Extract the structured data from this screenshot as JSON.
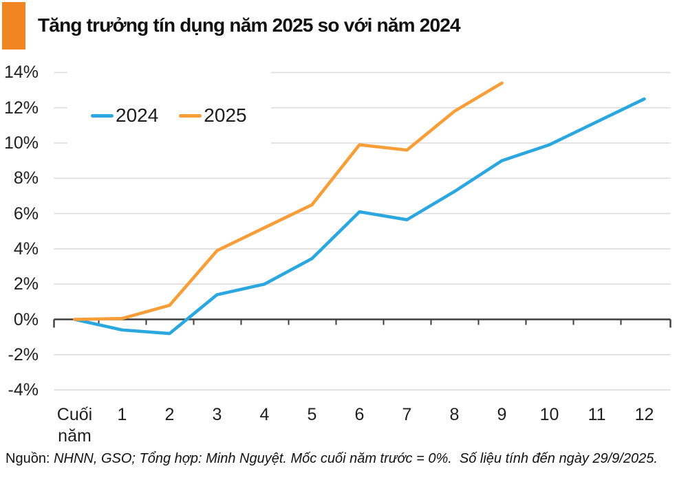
{
  "chart_data": {
    "type": "line",
    "title": "Tăng trưởng tín dụng năm 2025 so với năm 2024",
    "accent_block_color": "#F08522",
    "categories": [
      "Cuối năm",
      "1",
      "2",
      "3",
      "4",
      "5",
      "6",
      "7",
      "8",
      "9",
      "10",
      "11",
      "12"
    ],
    "series": [
      {
        "name": "2024",
        "color": "#2BA7DF",
        "values": [
          0,
          -0.6,
          -0.8,
          1.4,
          2.0,
          3.45,
          6.1,
          5.65,
          7.25,
          9.0,
          9.9,
          11.2,
          12.5
        ]
      },
      {
        "name": "2025",
        "color": "#F89E38",
        "values": [
          0,
          0.05,
          0.8,
          3.9,
          5.2,
          6.5,
          9.9,
          9.6,
          11.8,
          13.4,
          null,
          null,
          null
        ]
      }
    ],
    "ylim": [
      -4,
      14
    ],
    "yticks": [
      {
        "value": 14,
        "label": "14%"
      },
      {
        "value": 12,
        "label": "12%"
      },
      {
        "value": 10,
        "label": "10%"
      },
      {
        "value": 8,
        "label": "8%"
      },
      {
        "value": 6,
        "label": "6%"
      },
      {
        "value": 4,
        "label": "4%"
      },
      {
        "value": 2,
        "label": "2%"
      },
      {
        "value": 0,
        "label": "0%"
      },
      {
        "value": -2,
        "label": "-2%"
      },
      {
        "value": -4,
        "label": "-4%"
      }
    ],
    "grid": "horizontal",
    "grid_color": "#DCDCDC",
    "axis_color": "#3D3D3D",
    "legend_position": "top-left-inside",
    "baseline": 0
  },
  "footer": {
    "prefix": "Nguồn: ",
    "text": "NHNN, GSO; Tổng hợp: Minh Nguyệt. Mốc cuối năm trước = 0%.  Số liệu tính đến ngày 29/9/2025."
  }
}
